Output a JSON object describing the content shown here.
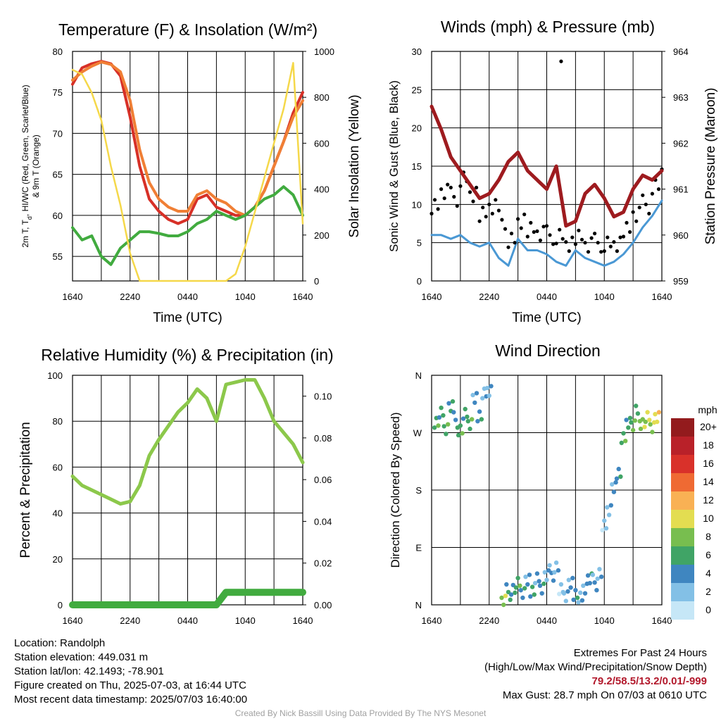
{
  "chart_data": [
    {
      "type": "line",
      "title": "Temperature (F) & Insolation (W/m²)",
      "xlabel": "Time (UTC)",
      "ylabel": "2m T, Td, HI/WC (Red, Green, Scarlet/Blue) & 9m T (Orange)",
      "ylabel_line1": "2m T, T",
      "ylabel_sub": "d",
      "ylabel_line1_rest": ", HI/WC (Red, Green, Scarlet/Blue)",
      "ylabel_line2": "& 9m T (Orange)",
      "y2label": "Solar Insolation (Yellow)",
      "x_ticks": [
        "1640",
        "2240",
        "0440",
        "1040",
        "1640"
      ],
      "ylim": [
        52,
        80
      ],
      "y_ticks": [
        "55",
        "60",
        "65",
        "70",
        "75",
        "80"
      ],
      "y2lim": [
        0,
        1000
      ],
      "y2_ticks": [
        "0",
        "200",
        "400",
        "600",
        "800",
        "1000"
      ],
      "x_hours": [
        0,
        1,
        2,
        3,
        4,
        5,
        6,
        7,
        8,
        9,
        10,
        11,
        12,
        13,
        14,
        15,
        16,
        17,
        18,
        19,
        20,
        21,
        22,
        23,
        24
      ],
      "series": [
        {
          "name": "2m T",
          "color": "#d73027",
          "axis": "left",
          "values": [
            76,
            78,
            78.5,
            78.8,
            78.5,
            77,
            72,
            66,
            62,
            60.5,
            59.5,
            59,
            59.5,
            62,
            62.5,
            61,
            60.5,
            60,
            60,
            61,
            63,
            66,
            69,
            72.5,
            75
          ]
        },
        {
          "name": "9m T",
          "color": "#f07f35",
          "axis": "left",
          "values": [
            76.5,
            77.5,
            78.2,
            78.7,
            78.4,
            77.5,
            74,
            68,
            64,
            62,
            61,
            60.5,
            60.5,
            62.5,
            63,
            62,
            61.5,
            60.5,
            60,
            61,
            63,
            66,
            69,
            72,
            74
          ]
        },
        {
          "name": "Td",
          "color": "#41ab3f",
          "axis": "left",
          "values": [
            58.5,
            57,
            57.5,
            55,
            54,
            56,
            57,
            58,
            58,
            57.8,
            57.5,
            57.5,
            58,
            59,
            59.5,
            60.5,
            60,
            59.5,
            60,
            61,
            62,
            62.5,
            63.5,
            62.5,
            60
          ]
        },
        {
          "name": "Solar Insolation",
          "color": "#f5d84a",
          "axis": "right",
          "values": [
            920,
            900,
            820,
            700,
            500,
            330,
            120,
            0,
            0,
            0,
            0,
            0,
            0,
            0,
            0,
            0,
            0,
            30,
            150,
            300,
            450,
            600,
            750,
            950,
            250
          ]
        }
      ]
    },
    {
      "type": "scatter",
      "title": "Winds (mph) & Pressure (mb)",
      "xlabel": "Time (UTC)",
      "ylabel": "Sonic Wind & Gust (Blue, Black)",
      "y2label": "Station Pressure (Maroon)",
      "x_ticks": [
        "1640",
        "2240",
        "0440",
        "1040",
        "1640"
      ],
      "ylim": [
        0,
        30
      ],
      "y_ticks": [
        "0",
        "5",
        "10",
        "15",
        "20",
        "25",
        "30"
      ],
      "y2lim": [
        959,
        964
      ],
      "y2_ticks": [
        "959",
        "960",
        "961",
        "962",
        "963",
        "964"
      ],
      "x_hours": [
        0,
        1,
        2,
        3,
        4,
        5,
        6,
        7,
        8,
        9,
        10,
        11,
        12,
        13,
        14,
        15,
        16,
        17,
        18,
        19,
        20,
        21,
        22,
        23,
        24
      ],
      "series": [
        {
          "name": "Sonic Wind",
          "color": "#4a98d4",
          "axis": "left",
          "values": [
            6,
            6,
            5.5,
            6,
            5,
            4.5,
            5,
            3,
            2,
            5.5,
            4,
            4,
            3.5,
            2.5,
            2,
            4,
            3,
            2.5,
            2,
            2.5,
            3.5,
            5,
            7,
            8.5,
            10.5
          ]
        },
        {
          "name": "Gust",
          "color": "#000000",
          "axis": "left",
          "values": [
            10,
            12,
            11,
            13,
            11,
            9,
            10,
            8,
            5,
            7.5,
            7,
            6.5,
            6,
            5.5,
            4.5,
            6,
            5,
            5,
            4.5,
            4.5,
            7,
            9,
            10,
            12,
            14
          ]
        },
        {
          "name": "Station Pressure",
          "color": "#9e1b1f",
          "axis": "right",
          "values": [
            962.8,
            962.3,
            961.7,
            961.4,
            961.1,
            960.8,
            960.9,
            961.2,
            961.6,
            961.8,
            961.4,
            961.2,
            961.0,
            961.5,
            960.2,
            960.3,
            960.9,
            961.1,
            960.8,
            960.4,
            960.5,
            961.0,
            961.3,
            961.2,
            961.4
          ]
        }
      ],
      "outlier_gust": {
        "hour": 13.5,
        "value": 28.7
      }
    },
    {
      "type": "line",
      "title": "Relative Humidity (%) & Precipitation (in)",
      "xlabel": "",
      "ylabel": "Percent & Precipitation",
      "x_ticks": [
        "1640",
        "2240",
        "0440",
        "1040",
        "1640"
      ],
      "ylim": [
        0,
        100
      ],
      "y_ticks": [
        "0",
        "20",
        "40",
        "60",
        "80",
        "100"
      ],
      "y2lim": [
        0,
        0.11
      ],
      "y2_ticks": [
        "0.00",
        "0.02",
        "0.04",
        "0.06",
        "0.08",
        "0.10"
      ],
      "x_hours": [
        0,
        1,
        2,
        3,
        4,
        5,
        6,
        7,
        8,
        9,
        10,
        11,
        12,
        13,
        14,
        15,
        16,
        17,
        18,
        19,
        20,
        21,
        22,
        23,
        24
      ],
      "series": [
        {
          "name": "Relative Humidity",
          "color": "#8cc84b",
          "axis": "left",
          "values": [
            56,
            52,
            50,
            48,
            46,
            44,
            45,
            52,
            65,
            72,
            78,
            84,
            88,
            94,
            90,
            80,
            96,
            97,
            98,
            98,
            90,
            80,
            75,
            70,
            62
          ]
        },
        {
          "name": "Precipitation",
          "color": "#41ab3f",
          "axis": "right",
          "values": [
            0,
            0,
            0,
            0,
            0,
            0,
            0,
            0,
            0,
            0,
            0,
            0,
            0,
            0,
            0,
            0,
            0.006,
            0.006,
            0.006,
            0.006,
            0.006,
            0.006,
            0.006,
            0.006,
            0.006
          ]
        }
      ]
    },
    {
      "type": "scatter",
      "title": "Wind Direction",
      "xlabel": "",
      "ylabel": "Direction (Colored By Speed)",
      "x_ticks": [
        "1640",
        "2240",
        "0440",
        "1040",
        "1640"
      ],
      "y_ticks": [
        "N",
        "E",
        "S",
        "W",
        "N"
      ],
      "ylim": [
        0,
        360
      ],
      "colorbar": {
        "title": "mph",
        "labels": [
          "0",
          "2",
          "4",
          "6",
          "8",
          "10",
          "12",
          "14",
          "16",
          "18",
          "20+"
        ],
        "colors": [
          "#c6e7f7",
          "#83c0e6",
          "#3f86c0",
          "#40a466",
          "#78be4f",
          "#e3dd51",
          "#f9b154",
          "#ef6a33",
          "#d9312a",
          "#b92129",
          "#931b1d"
        ]
      },
      "points": [
        {
          "hour": 0.5,
          "dir": 290,
          "speed": 6
        },
        {
          "hour": 1,
          "dir": 300,
          "speed": 5
        },
        {
          "hour": 1.5,
          "dir": 280,
          "speed": 6
        },
        {
          "hour": 2,
          "dir": 310,
          "speed": 5
        },
        {
          "hour": 2.5,
          "dir": 290,
          "speed": 4
        },
        {
          "hour": 3,
          "dir": 275,
          "speed": 6
        },
        {
          "hour": 3.5,
          "dir": 295,
          "speed": 5
        },
        {
          "hour": 4,
          "dir": 285,
          "speed": 6
        },
        {
          "hour": 4.5,
          "dir": 320,
          "speed": 3
        },
        {
          "hour": 5,
          "dir": 300,
          "speed": 4
        },
        {
          "hour": 5.5,
          "dir": 330,
          "speed": 2
        },
        {
          "hour": 6,
          "dir": 340,
          "speed": 2
        },
        {
          "hour": 7.5,
          "dir": 5,
          "speed": 8
        },
        {
          "hour": 8,
          "dir": 20,
          "speed": 5
        },
        {
          "hour": 8.5,
          "dir": 25,
          "speed": 4
        },
        {
          "hour": 9,
          "dir": 30,
          "speed": 6
        },
        {
          "hour": 9.5,
          "dir": 20,
          "speed": 4
        },
        {
          "hour": 10,
          "dir": 35,
          "speed": 3
        },
        {
          "hour": 10.5,
          "dir": 25,
          "speed": 5
        },
        {
          "hour": 11,
          "dir": 40,
          "speed": 3
        },
        {
          "hour": 11.5,
          "dir": 30,
          "speed": 4
        },
        {
          "hour": 12,
          "dir": 45,
          "speed": 2
        },
        {
          "hour": 12.5,
          "dir": 50,
          "speed": 3
        },
        {
          "hour": 13,
          "dir": 60,
          "speed": 2
        },
        {
          "hour": 13.5,
          "dir": 20,
          "speed": 1
        },
        {
          "hour": 14,
          "dir": 15,
          "speed": 2
        },
        {
          "hour": 14.5,
          "dir": 30,
          "speed": 3
        },
        {
          "hour": 15,
          "dir": 20,
          "speed": 4
        },
        {
          "hour": 15.5,
          "dir": 10,
          "speed": 2
        },
        {
          "hour": 16,
          "dir": 30,
          "speed": 3
        },
        {
          "hour": 16.5,
          "dir": 40,
          "speed": 4
        },
        {
          "hour": 17,
          "dir": 35,
          "speed": 3
        },
        {
          "hour": 17.5,
          "dir": 50,
          "speed": 2
        },
        {
          "hour": 18,
          "dir": 120,
          "speed": 1
        },
        {
          "hour": 18.5,
          "dir": 150,
          "speed": 2
        },
        {
          "hour": 19,
          "dir": 180,
          "speed": 3
        },
        {
          "hour": 19.5,
          "dir": 210,
          "speed": 4
        },
        {
          "hour": 20,
          "dir": 260,
          "speed": 6
        },
        {
          "hour": 20.5,
          "dir": 290,
          "speed": 5
        },
        {
          "hour": 21,
          "dir": 280,
          "speed": 7
        },
        {
          "hour": 21.5,
          "dir": 300,
          "speed": 6
        },
        {
          "hour": 22,
          "dir": 285,
          "speed": 8
        },
        {
          "hour": 22.5,
          "dir": 290,
          "speed": 9
        },
        {
          "hour": 23,
          "dir": 280,
          "speed": 8
        },
        {
          "hour": 23.5,
          "dir": 290,
          "speed": 10
        }
      ]
    }
  ],
  "info": {
    "location": "Location: Randolph",
    "elevation": "Station elevation: 449.031 m",
    "latlon": "Station lat/lon: 42.1493; -78.901",
    "created": "Figure created on Thu, 2025-07-03, at 16:44 UTC",
    "recent": "Most recent data timestamp: 2025/07/03 16:40:00"
  },
  "extremes": {
    "title": "Extremes For Past 24 Hours",
    "subtitle": "(High/Low/Max Wind/Precipitation/Snow Depth)",
    "values": "79.2/58.5/13.2/0.01/-999",
    "gust": "Max Gust: 28.7 mph On 07/03 at 0610 UTC"
  },
  "credit": "Created By Nick Bassill Using Data Provided By The NYS Mesonet"
}
